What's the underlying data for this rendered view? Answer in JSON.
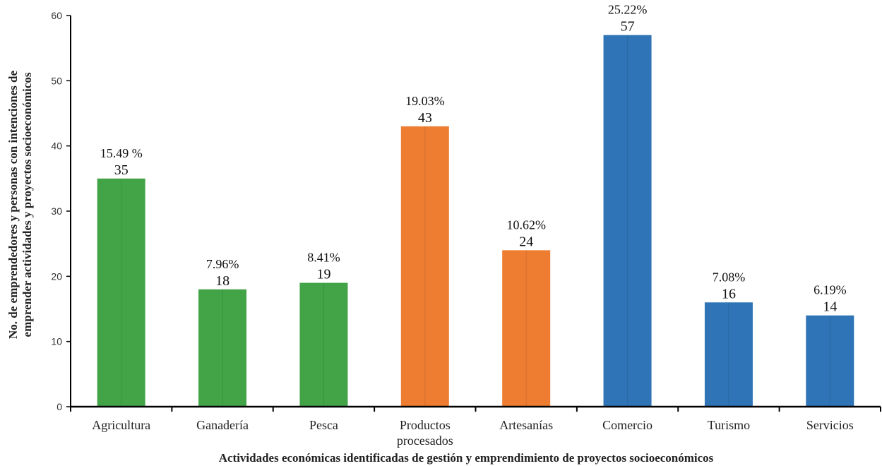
{
  "chart_data": {
    "type": "bar",
    "categories": [
      "Agricultura",
      "Ganadería",
      "Pesca",
      "Productos procesados",
      "Artesanías",
      "Comercio",
      "Turismo",
      "Servicios"
    ],
    "category_lines": [
      [
        "Agricultura"
      ],
      [
        "Ganadería"
      ],
      [
        "Pesca"
      ],
      [
        "Productos",
        "procesados"
      ],
      [
        "Artesanías"
      ],
      [
        "Comercio"
      ],
      [
        "Turismo"
      ],
      [
        "Servicios"
      ]
    ],
    "values": [
      35,
      18,
      19,
      43,
      24,
      57,
      16,
      14
    ],
    "percent_labels": [
      "15.49 %",
      "7.96%",
      "8.41%",
      "19.03%",
      "10.62%",
      "25.22%",
      "7.08%",
      "6.19%"
    ],
    "bar_colors": [
      "#43a447",
      "#43a447",
      "#43a447",
      "#ee7d31",
      "#ee7d31",
      "#2e74b6",
      "#2e74b6",
      "#2e74b6"
    ],
    "ylim": [
      0,
      60
    ],
    "yticks": [
      0,
      10,
      20,
      30,
      40,
      50,
      60
    ],
    "xlabel": "Actividades económicas identificadas de gestión y emprendimiento de proyectos socioeconómicos",
    "ylabel_lines": [
      "No. de emprendedores y personas con intenciones de",
      "emprender actividades y proyectos socioeconómicos"
    ],
    "grid": false,
    "legend": "none"
  }
}
